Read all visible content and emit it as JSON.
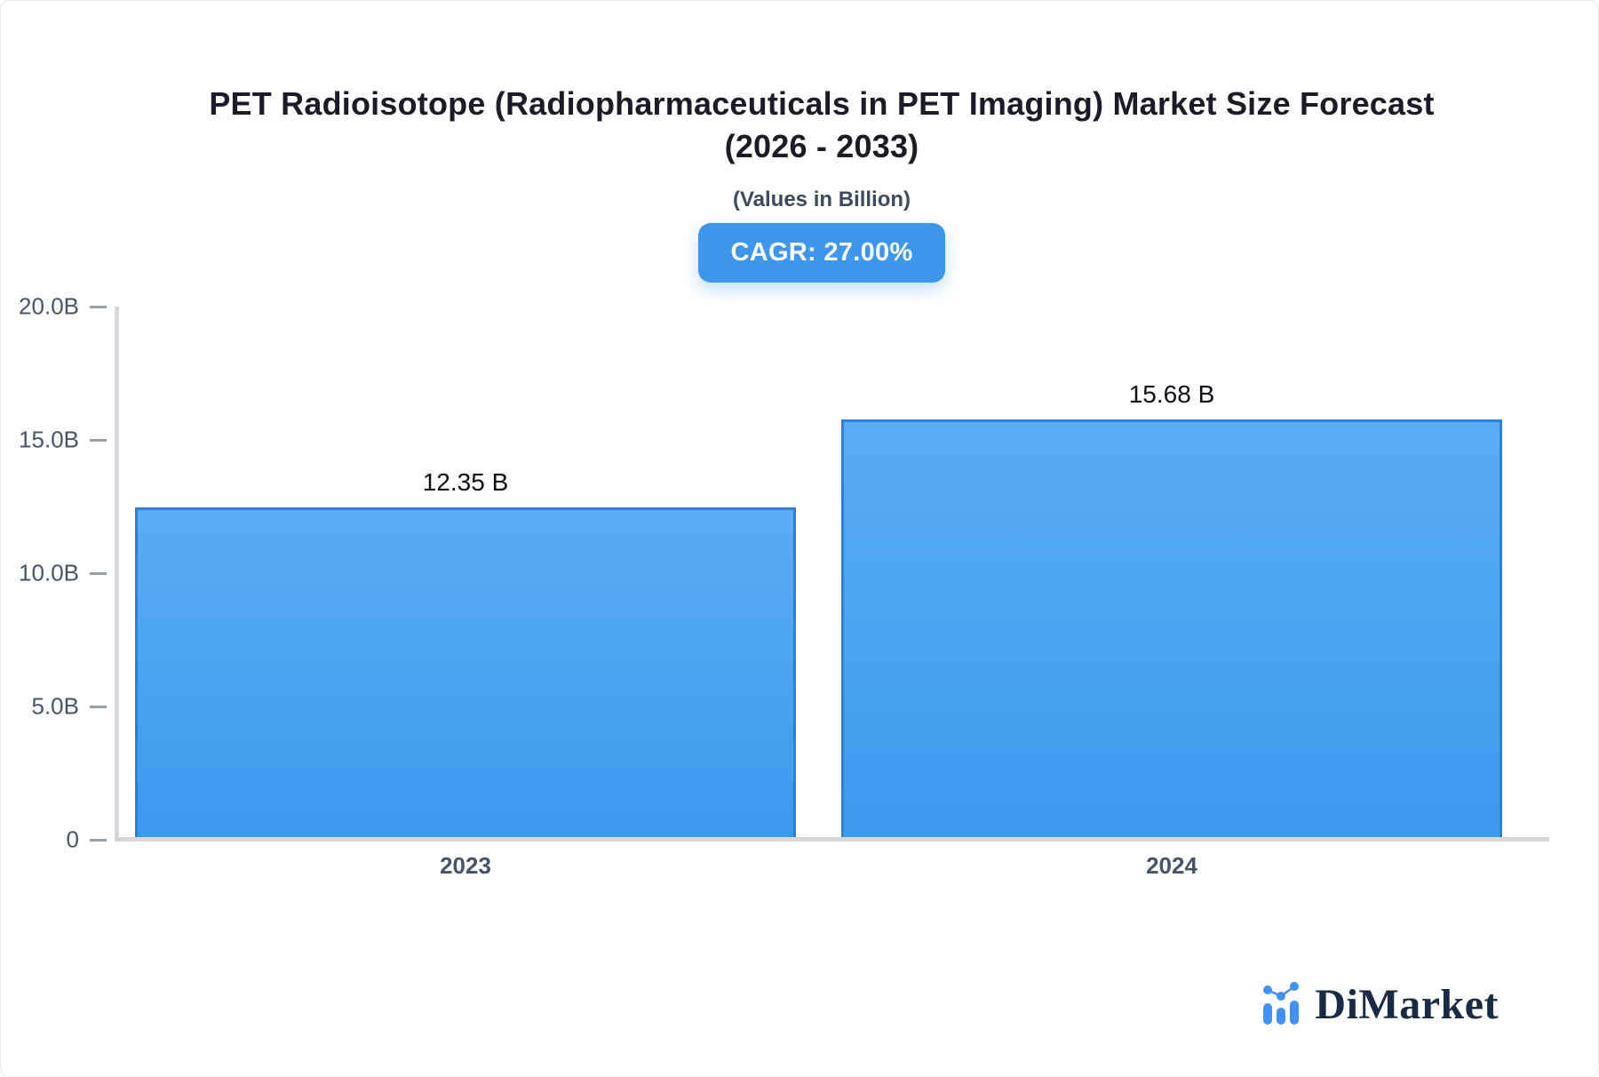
{
  "header": {
    "title_line1": "PET Radioisotope (Radiopharmaceuticals in PET Imaging) Market Size Forecast",
    "title_line2": "(2026 - 2033)",
    "subtitle": "(Values in Billion)",
    "cagr_badge": "CAGR: 27.00%"
  },
  "chart_data": {
    "type": "bar",
    "title": "PET Radioisotope (Radiopharmaceuticals in PET Imaging) Market Size Forecast (2026 - 2033)",
    "subtitle": "(Values in Billion)",
    "cagr_percent": 27.0,
    "categories": [
      "2023",
      "2024"
    ],
    "values": [
      12.35,
      15.68
    ],
    "value_labels": [
      "12.35 B",
      "15.68 B"
    ],
    "xlabel": "",
    "ylabel": "",
    "ylim": [
      0,
      20
    ],
    "yticks": [
      {
        "value": 20,
        "label": "20.0B"
      },
      {
        "value": 15,
        "label": "15.0B"
      },
      {
        "value": 10,
        "label": "10.0B"
      },
      {
        "value": 5,
        "label": "5.0B"
      },
      {
        "value": 0,
        "label": "0"
      }
    ],
    "grid": false,
    "legend": false
  },
  "branding": {
    "logo_text": "DiMarket",
    "logo_icon": "bar-chart-with-trend-dots-icon"
  },
  "colors": {
    "badge_bg": "#3E96EF",
    "badge_text": "#FFFFFF",
    "bar_gradient_top": "#5CACF3",
    "bar_gradient_bottom": "#3C99F0",
    "bar_border": "#2E82D4",
    "axis_line": "#D8DADF",
    "tick_dash": "#98A0AD",
    "tick_label": "#4A5468",
    "title_text": "#1C1C28",
    "subtitle_text": "#3E4A5B",
    "value_label_text": "#0F0F18",
    "logo_icon_blue": "#4191F7",
    "logo_text_navy": "#1B2A45"
  }
}
